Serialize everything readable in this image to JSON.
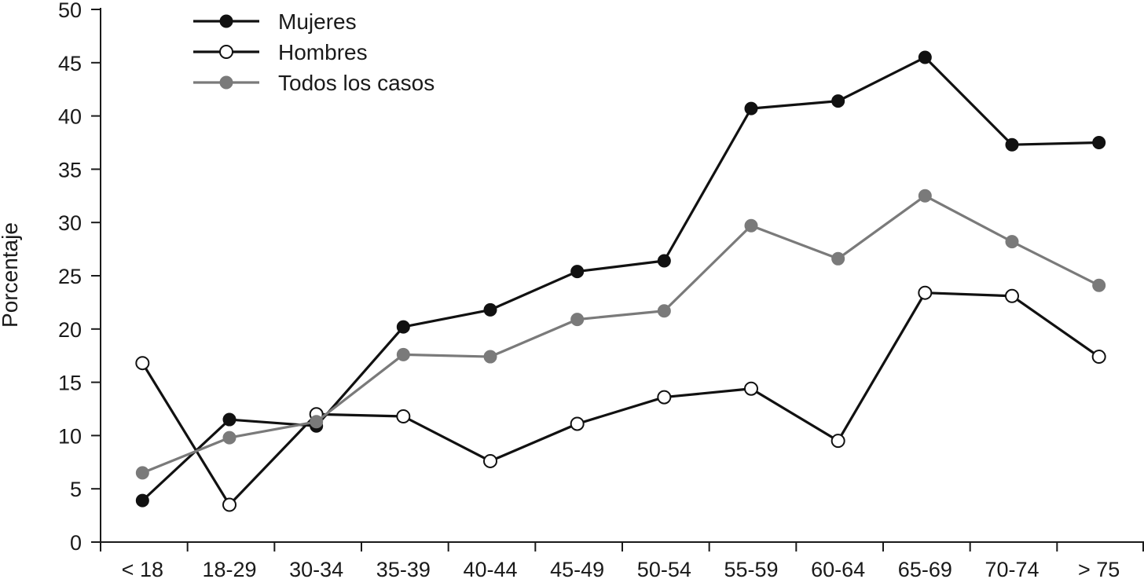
{
  "chart_data": {
    "type": "line",
    "title": "",
    "xlabel": "",
    "ylabel": "Porcentaje",
    "ylim": [
      0,
      50
    ],
    "yticks": [
      0,
      5,
      10,
      15,
      20,
      25,
      30,
      35,
      40,
      45,
      50
    ],
    "categories": [
      "< 18",
      "18-29",
      "30-34",
      "35-39",
      "40-44",
      "45-49",
      "50-54",
      "55-59",
      "60-64",
      "65-69",
      "70-74",
      "> 75"
    ],
    "grid": false,
    "legend_position": "top-left",
    "series": [
      {
        "name": "Mujeres",
        "color": "#111111",
        "marker": "filled-circle",
        "values": [
          3.9,
          11.5,
          10.9,
          20.2,
          21.8,
          25.4,
          26.4,
          40.7,
          41.4,
          45.5,
          37.3,
          37.5
        ]
      },
      {
        "name": "Hombres",
        "color": "#111111",
        "marker": "open-circle",
        "values": [
          16.8,
          3.5,
          12.0,
          11.8,
          7.6,
          11.1,
          13.6,
          14.4,
          9.5,
          23.4,
          23.1,
          17.4
        ]
      },
      {
        "name": "Todos los casos",
        "color": "#7a7a7a",
        "marker": "filled-circle",
        "values": [
          6.5,
          9.8,
          11.3,
          17.6,
          17.4,
          20.9,
          21.7,
          29.7,
          26.6,
          32.5,
          28.2,
          24.1
        ]
      }
    ]
  }
}
